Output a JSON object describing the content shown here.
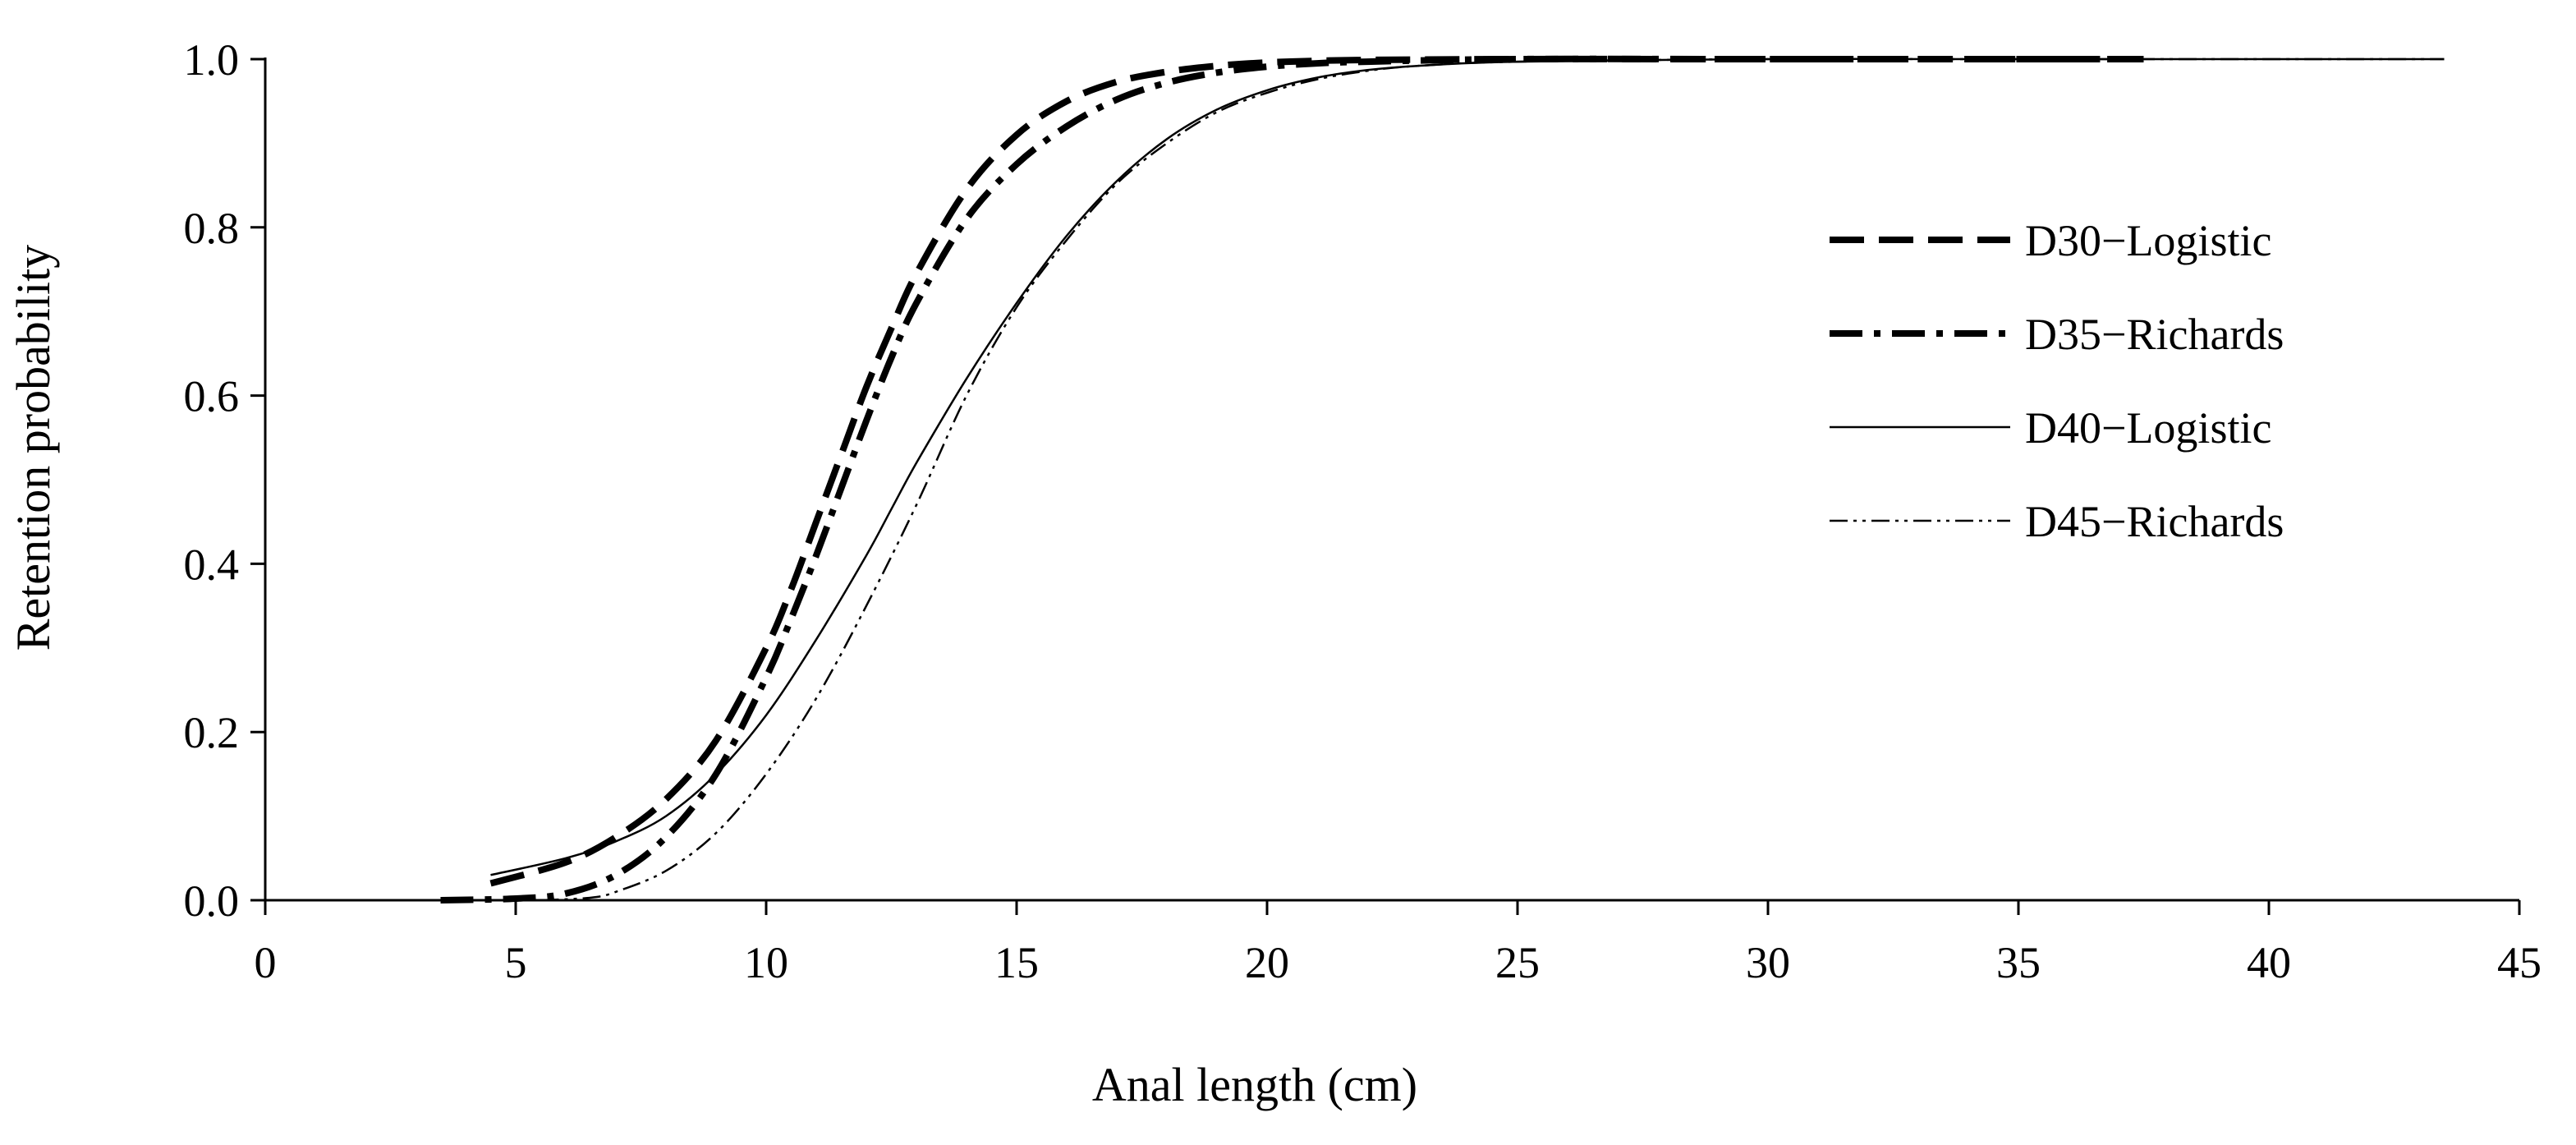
{
  "chart_data": {
    "type": "line",
    "title": "",
    "xlabel": "Anal length (cm)",
    "ylabel": "Retention probability",
    "xlim": [
      0,
      45
    ],
    "ylim": [
      0,
      1.0
    ],
    "x_ticks": [
      "0",
      "5",
      "10",
      "15",
      "20",
      "25",
      "30",
      "35",
      "40",
      "45"
    ],
    "y_ticks": [
      "0.0",
      "0.2",
      "0.4",
      "0.6",
      "0.8",
      "1.0"
    ],
    "grid": false,
    "legend_position": "right",
    "series": [
      {
        "name": "D30−Logistic",
        "style": "dashed",
        "x": [
          4.5,
          6,
          7,
          8,
          9,
          10,
          10.5,
          11,
          11.5,
          12,
          12.5,
          13,
          14,
          15,
          16,
          17,
          18,
          19,
          20,
          21,
          22,
          25,
          30,
          37.5
        ],
        "y": [
          0.02,
          0.045,
          0.075,
          0.12,
          0.19,
          0.3,
          0.37,
          0.45,
          0.53,
          0.61,
          0.68,
          0.745,
          0.845,
          0.91,
          0.95,
          0.973,
          0.985,
          0.992,
          0.996,
          0.998,
          0.999,
          1.0,
          1.0,
          1.0
        ]
      },
      {
        "name": "D35−Richards",
        "style": "dashdot",
        "x": [
          3.5,
          5,
          6,
          7,
          8,
          9,
          10,
          10.5,
          11,
          11.5,
          12,
          12.5,
          13,
          14,
          15,
          16,
          17,
          18,
          19,
          20,
          21,
          22,
          25,
          30,
          37.5
        ],
        "y": [
          0.0,
          0.002,
          0.008,
          0.03,
          0.075,
          0.15,
          0.265,
          0.335,
          0.41,
          0.49,
          0.57,
          0.645,
          0.71,
          0.81,
          0.875,
          0.92,
          0.952,
          0.972,
          0.984,
          0.991,
          0.995,
          0.997,
          1.0,
          1.0,
          1.0
        ]
      },
      {
        "name": "D40−Logistic",
        "style": "solid",
        "x": [
          4.5,
          6,
          7,
          8,
          9,
          10,
          11,
          12,
          12.5,
          13,
          14,
          15,
          16,
          17,
          18,
          19,
          20,
          21,
          22,
          23,
          25,
          30,
          35,
          43.5
        ],
        "y": [
          0.03,
          0.05,
          0.07,
          0.1,
          0.15,
          0.22,
          0.31,
          0.41,
          0.465,
          0.52,
          0.62,
          0.71,
          0.79,
          0.855,
          0.905,
          0.94,
          0.963,
          0.978,
          0.987,
          0.992,
          0.997,
          1.0,
          1.0,
          1.0
        ]
      },
      {
        "name": "D45−Richards",
        "style": "dashdotdot",
        "x": [
          5.5,
          6.5,
          7,
          8,
          9,
          10,
          11,
          12,
          13,
          14,
          15,
          16,
          17,
          18,
          19,
          20,
          21,
          22,
          23,
          25,
          30,
          35,
          43.5
        ],
        "y": [
          0.0,
          0.003,
          0.01,
          0.035,
          0.08,
          0.15,
          0.24,
          0.35,
          0.47,
          0.6,
          0.705,
          0.785,
          0.852,
          0.9,
          0.937,
          0.96,
          0.976,
          0.986,
          0.992,
          0.997,
          1.0,
          1.0,
          1.0
        ]
      }
    ]
  }
}
